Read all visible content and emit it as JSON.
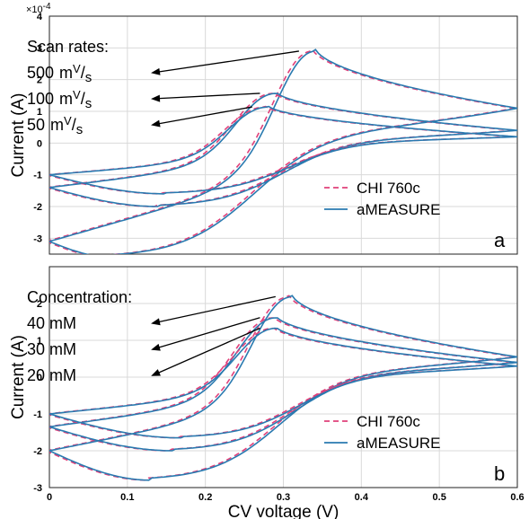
{
  "chart_data": [
    {
      "type": "line",
      "panel_label": "a",
      "ylabel": "Current (A)",
      "xlabel": "",
      "y_exponent_label": "×10",
      "y_exponent_power": "-4",
      "xlim": [
        0,
        0.6
      ],
      "ylim": [
        -3.5,
        4
      ],
      "yticks": [
        -3,
        -2,
        -1,
        0,
        1,
        2,
        3,
        4
      ],
      "grid": true,
      "legend_position": "bottom-right",
      "annotation_title": "Scan rates:",
      "annotation_entries": [
        {
          "value": "500",
          "unit_a": "m",
          "unit_b": "V",
          "unit_c": "/",
          "unit_d": "s"
        },
        {
          "value": "100",
          "unit_a": "m",
          "unit_b": "V",
          "unit_c": "/",
          "unit_d": "s"
        },
        {
          "value": "50",
          "unit_a": "m",
          "unit_b": "V",
          "unit_c": "/",
          "unit_d": "s"
        }
      ],
      "series": [
        {
          "name": "CHI 760c",
          "style": "dashed",
          "color": "#e0407a"
        },
        {
          "name": "aMEASURE",
          "style": "solid",
          "color": "#2a7ab0"
        }
      ],
      "curves": [
        {
          "label": "500 mV/s",
          "start": -3.1,
          "end": 1.1,
          "anodic_peak": [
            0.34,
            3.05
          ],
          "cathodic_peak": [
            0.08,
            -3.6
          ]
        },
        {
          "label": "100 mV/s",
          "start": -1.4,
          "end": 0.4,
          "anodic_peak": [
            0.29,
            1.65
          ],
          "cathodic_peak": [
            0.14,
            -2.0
          ]
        },
        {
          "label": "50 mV/s",
          "start": -1.0,
          "end": 0.2,
          "anodic_peak": [
            0.28,
            1.2
          ],
          "cathodic_peak": [
            0.15,
            -1.6
          ]
        }
      ]
    },
    {
      "type": "line",
      "panel_label": "b",
      "ylabel": "Current (A)",
      "xlabel": "CV voltage (V)",
      "xlim": [
        0,
        0.6
      ],
      "ylim": [
        -3,
        3
      ],
      "xticks": [
        0,
        0.1,
        0.2,
        0.3,
        0.4,
        0.5,
        0.6
      ],
      "xtick_labels": [
        "0",
        "0.1",
        "0.2",
        "0.3",
        "0.4",
        "0.5",
        "0.6"
      ],
      "yticks": [
        -3,
        -2,
        -1,
        0,
        1,
        2
      ],
      "grid": true,
      "legend_position": "bottom-right",
      "annotation_title": "Concentration:",
      "annotation_entries": [
        {
          "text": "40 mM"
        },
        {
          "text": "30 mM"
        },
        {
          "text": "20 mM"
        }
      ],
      "series": [
        {
          "name": "CHI 760c",
          "style": "dashed",
          "color": "#e0407a"
        },
        {
          "name": "aMEASURE",
          "style": "solid",
          "color": "#2a7ab0"
        }
      ],
      "curves": [
        {
          "label": "40 mM",
          "start": -2.0,
          "end": 0.55,
          "anodic_peak": [
            0.31,
            2.3
          ],
          "cathodic_peak": [
            0.13,
            -2.8
          ]
        },
        {
          "label": "30 mM",
          "start": -1.35,
          "end": 0.4,
          "anodic_peak": [
            0.29,
            1.7
          ],
          "cathodic_peak": [
            0.16,
            -2.0
          ]
        },
        {
          "label": "20 mM",
          "start": -1.0,
          "end": 0.3,
          "anodic_peak": [
            0.29,
            1.4
          ],
          "cathodic_peak": [
            0.17,
            -1.65
          ]
        }
      ]
    }
  ]
}
